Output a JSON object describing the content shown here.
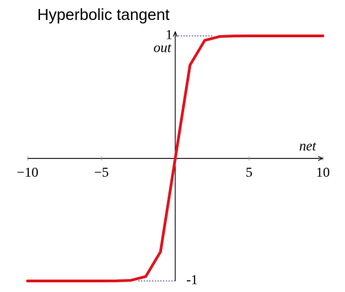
{
  "chart_data": {
    "type": "line",
    "title": "Hyperbolic tangent",
    "x_label": "net",
    "y_label": "out",
    "x": [
      -10,
      -9,
      -8,
      -7,
      -6,
      -5,
      -4,
      -3,
      -2,
      -1,
      0,
      1,
      2,
      3,
      4,
      5,
      6,
      7,
      8,
      9,
      10
    ],
    "values": [
      -1,
      -1,
      -1,
      -1,
      -1,
      -1,
      -0.999,
      -0.995,
      -0.964,
      -0.762,
      0,
      0.762,
      0.964,
      0.995,
      0.999,
      1,
      1,
      1,
      1,
      1,
      1
    ],
    "color": "#e0141e",
    "xlim": [
      -10,
      10
    ],
    "xticks": [
      {
        "value": -10,
        "label": "−10"
      },
      {
        "value": -5,
        "label": "−5"
      },
      5,
      10
    ],
    "ylim": [
      -1,
      1
    ],
    "yticks": [
      -1,
      1
    ]
  }
}
